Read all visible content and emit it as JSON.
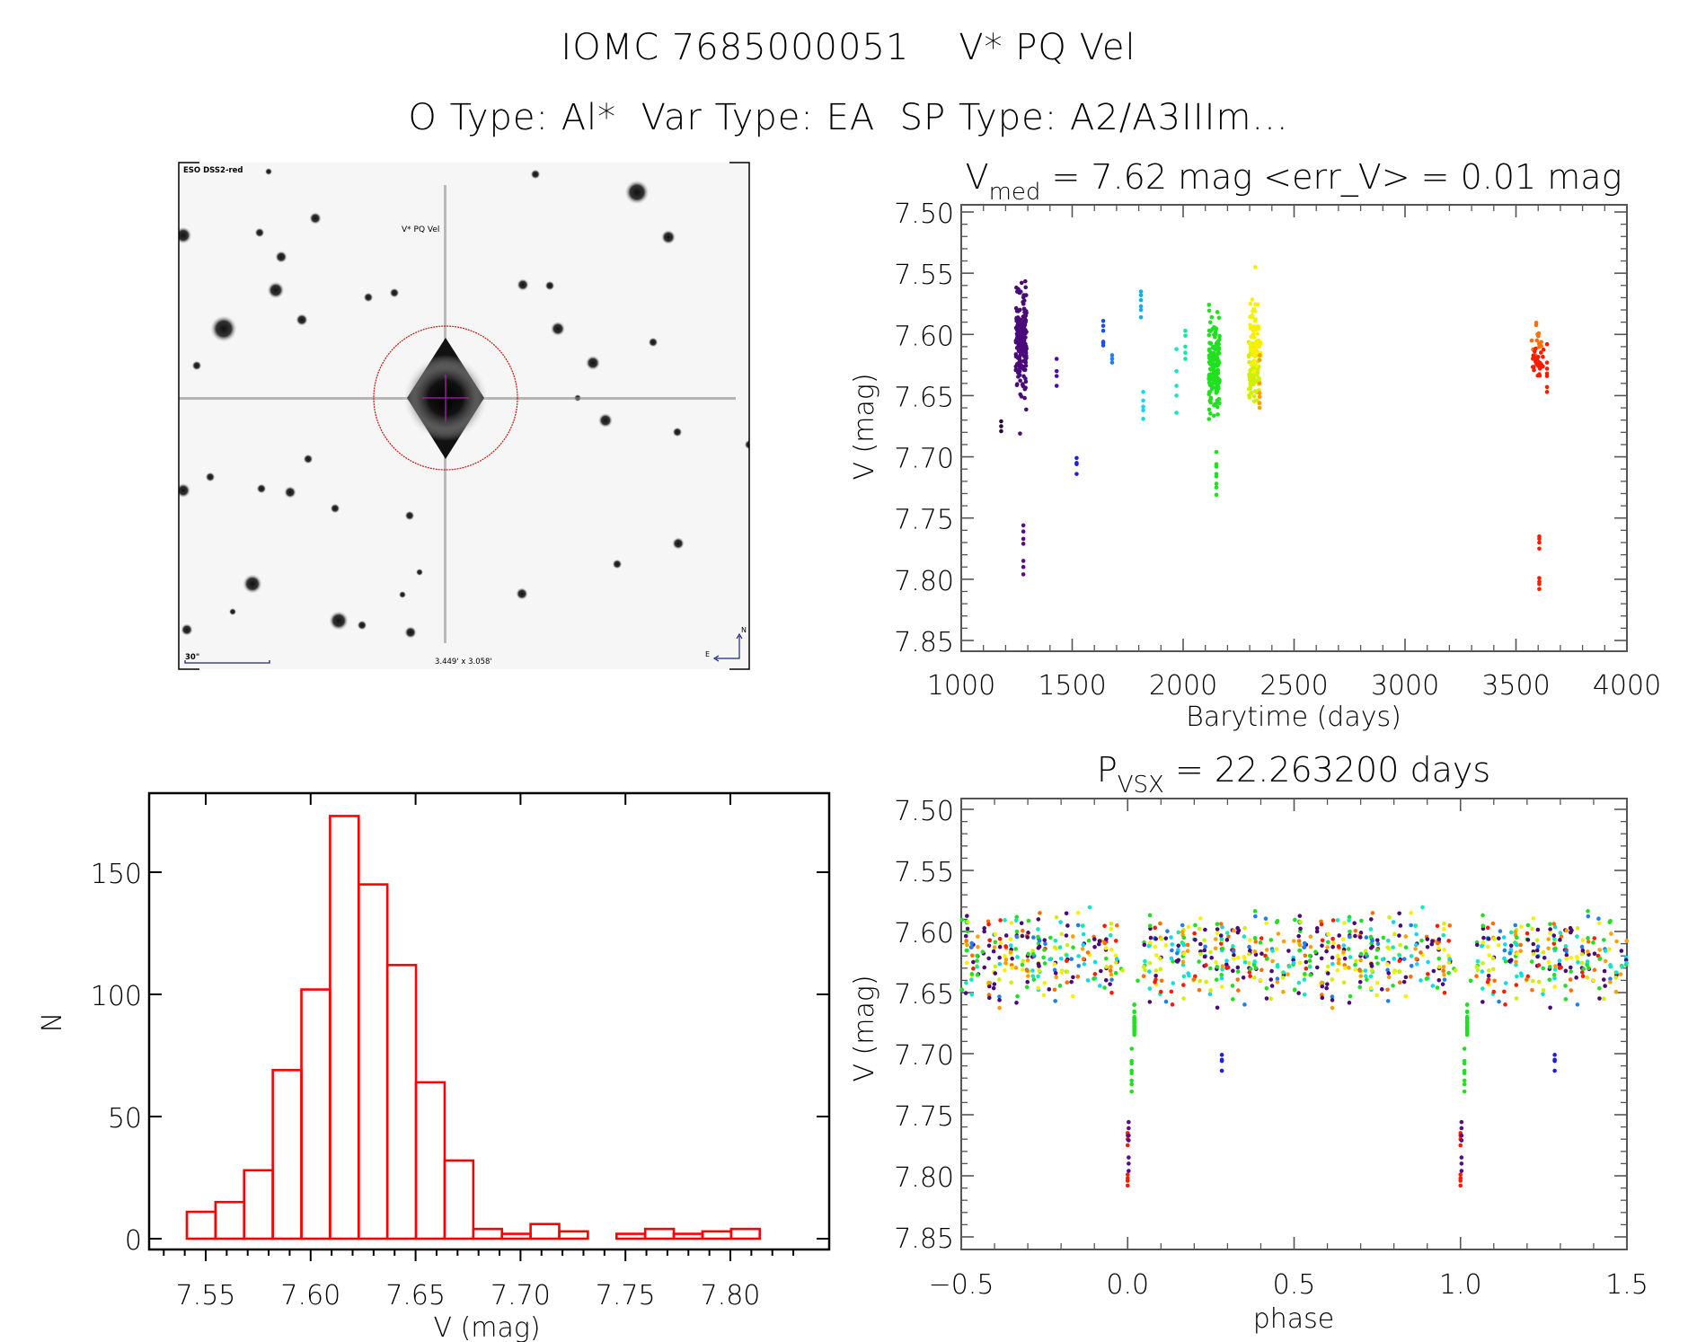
{
  "header": {
    "line1": "IOMC 7685000051    V* PQ Vel",
    "line2": "O Type: Al*  Var Type: EA  SP Type: A2/A3IIIm..."
  },
  "finder_image": {
    "survey_label": "ESO DSS2-red",
    "target_label": "V* PQ Vel",
    "scale_label": "30\"",
    "fov_label": "3.449' x 3.058'",
    "north_label": "N",
    "east_label": "E",
    "circle_color": "#cc1111",
    "crosshair_color": "#aa22aa",
    "annotation_color": "#1a237e"
  },
  "chart_data": [
    {
      "id": "light_curve",
      "type": "scatter",
      "title_main": "V",
      "title_sub": "med",
      "title_rest": " = 7.62 mag <err_V> = 0.01 mag",
      "xlabel": "Barytime (days)",
      "ylabel": "V (mag)",
      "xlim": [
        1000,
        4000
      ],
      "ylim": [
        7.85,
        7.5
      ],
      "y_inverted": true,
      "xticks": [
        1000,
        1500,
        2000,
        2500,
        3000,
        3500,
        4000
      ],
      "xtick_labels": [
        "1000",
        "1500",
        "2000",
        "2500",
        "3000",
        "3500",
        "4000"
      ],
      "yticks": [
        7.5,
        7.55,
        7.6,
        7.65,
        7.7,
        7.75,
        7.8,
        7.85
      ],
      "ytick_labels": [
        "7.50",
        "7.55",
        "7.60",
        "7.65",
        "7.70",
        "7.75",
        "7.80",
        "7.85"
      ],
      "color_scale": "time-rainbow (purple to red)",
      "groups": [
        {
          "x": 1180,
          "color": "#2a0a3a",
          "v": [
            7.671,
            7.675,
            7.679
          ]
        },
        {
          "x": 1270,
          "color": "#4b0a7a",
          "v_range": [
            7.542,
            7.668
          ],
          "n": 180
        },
        {
          "x": 1265,
          "color": "#4b0a7a",
          "v": [
            7.681
          ]
        },
        {
          "x": 1280,
          "color": "#5a0a8a",
          "v": [
            7.756,
            7.761,
            7.767,
            7.771,
            7.785,
            7.79,
            7.796
          ]
        },
        {
          "x": 1430,
          "color": "#4b0ab0",
          "v": [
            7.62,
            7.63,
            7.634,
            7.642
          ]
        },
        {
          "x": 1520,
          "color": "#2020e0",
          "v": [
            7.701,
            7.705,
            7.706,
            7.714
          ]
        },
        {
          "x": 1640,
          "color": "#1a50e8",
          "v": [
            7.589,
            7.593,
            7.597,
            7.606,
            7.607,
            7.609
          ]
        },
        {
          "x": 1680,
          "color": "#1e80f0",
          "v": [
            7.617,
            7.62,
            7.623
          ]
        },
        {
          "x": 1810,
          "color": "#10b0f0",
          "v": [
            7.565,
            7.568,
            7.572,
            7.577,
            7.58,
            7.586
          ]
        },
        {
          "x": 1820,
          "color": "#10d8f0",
          "v": [
            7.647,
            7.654,
            7.659,
            7.662,
            7.669
          ]
        },
        {
          "x": 1970,
          "color": "#10e8c0",
          "v": [
            7.612,
            7.63,
            7.642,
            7.65,
            7.664
          ]
        },
        {
          "x": 2010,
          "color": "#10e8a0",
          "v": [
            7.597,
            7.601,
            7.61,
            7.615,
            7.62
          ]
        },
        {
          "x": 2140,
          "color": "#20e020",
          "v_range": [
            7.573,
            7.682
          ],
          "n": 170
        },
        {
          "x": 2150,
          "color": "#20e020",
          "v": [
            7.696,
            7.706,
            7.708,
            7.714,
            7.716,
            7.722,
            7.725,
            7.731
          ]
        },
        {
          "x": 2320,
          "color": "#d0f000",
          "v_range": [
            7.597,
            7.668
          ],
          "n": 70
        },
        {
          "x": 2325,
          "color": "#f8f000",
          "v_range": [
            7.56,
            7.64
          ],
          "n": 60
        },
        {
          "x": 2325,
          "color": "#f8f000",
          "v": [
            7.545
          ]
        },
        {
          "x": 2345,
          "color": "#ffa000",
          "v": [
            7.617,
            7.621,
            7.64,
            7.648,
            7.651,
            7.656,
            7.66
          ]
        },
        {
          "x": 3595,
          "color": "#ff7000",
          "v_range": [
            7.587,
            7.622
          ],
          "n": 14
        },
        {
          "x": 3600,
          "color": "#ff1a00",
          "v_range": [
            7.605,
            7.641
          ],
          "n": 30
        },
        {
          "x": 3640,
          "color": "#ff1a00",
          "v": [
            7.608,
            7.623,
            7.628,
            7.632,
            7.634,
            7.643,
            7.647
          ]
        },
        {
          "x": 3605,
          "color": "#ff1a00",
          "v": [
            7.765,
            7.767,
            7.77,
            7.775,
            7.799,
            7.802,
            7.804,
            7.808
          ]
        }
      ]
    },
    {
      "id": "histogram",
      "type": "bar",
      "title": "",
      "xlabel": "V (mag)",
      "ylabel": "N",
      "xlim": [
        7.53,
        7.83
      ],
      "ylim": [
        0,
        180
      ],
      "xticks": [
        7.55,
        7.6,
        7.65,
        7.7,
        7.75,
        7.8
      ],
      "xtick_labels": [
        "7.55",
        "7.60",
        "7.65",
        "7.70",
        "7.75",
        "7.80"
      ],
      "yticks": [
        0,
        50,
        100,
        150
      ],
      "ytick_labels": [
        "0",
        "50",
        "100",
        "150"
      ],
      "bar_color": "#ff0000",
      "bin_start": 7.541,
      "bin_width": 0.01365,
      "values": [
        11,
        15,
        28,
        69,
        102,
        173,
        145,
        112,
        64,
        32,
        4,
        2,
        6,
        3,
        0,
        2,
        4,
        2,
        3,
        4
      ]
    },
    {
      "id": "phase_curve",
      "type": "scatter",
      "title_main": "P",
      "title_sub": "VSX",
      "title_rest": " = 22.263200 days",
      "xlabel": "phase",
      "ylabel": "V (mag)",
      "xlim": [
        -0.5,
        1.5
      ],
      "ylim": [
        7.85,
        7.5
      ],
      "y_inverted": true,
      "period_days": 22.2632,
      "xticks": [
        -0.5,
        0.0,
        0.5,
        1.0,
        1.5
      ],
      "xtick_labels": [
        "−0.5",
        "0.0",
        "0.5",
        "1.0",
        "1.5"
      ],
      "yticks": [
        7.5,
        7.55,
        7.6,
        7.65,
        7.7,
        7.75,
        7.8,
        7.85
      ],
      "ytick_labels": [
        "7.50",
        "7.55",
        "7.60",
        "7.65",
        "7.70",
        "7.75",
        "7.80",
        "7.85"
      ],
      "note": "Same points folded on period, plotted twice (phase and phase+1)",
      "eclipse_groups": [
        {
          "phase": 0.0,
          "color": "#ff1a00",
          "v": [
            7.765,
            7.767,
            7.77,
            7.775,
            7.799,
            7.802,
            7.804,
            7.808
          ]
        },
        {
          "phase": 0.003,
          "color": "#5a0a8a",
          "v": [
            7.756,
            7.761,
            7.767,
            7.771,
            7.785,
            7.79,
            7.796
          ]
        },
        {
          "phase": 0.012,
          "color": "#20e020",
          "v": [
            7.696,
            7.706,
            7.708,
            7.714,
            7.716,
            7.722,
            7.725,
            7.731
          ]
        },
        {
          "phase": 0.02,
          "color": "#20e020",
          "v_range": [
            7.655,
            7.688
          ],
          "n": 18
        },
        {
          "phase": 0.283,
          "color": "#2020e0",
          "v": [
            7.701,
            7.705,
            7.706,
            7.714
          ]
        }
      ]
    }
  ]
}
